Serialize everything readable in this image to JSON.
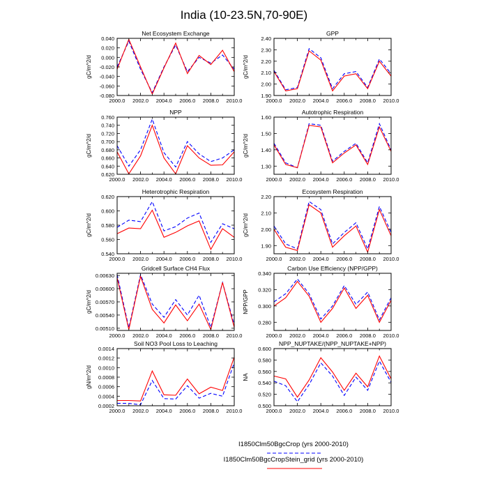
{
  "figure": {
    "title": "India (10-23.5N,70-90E)",
    "legend": [
      {
        "label": "I1850Clm50BgcCrop (yrs 2000-2010)",
        "color": "#0000ff",
        "dash": "dashed"
      },
      {
        "label": "I1850Clm50BgcCropStein_grid (yrs 2000-2010)",
        "color": "#ff0000",
        "dash": "solid"
      }
    ]
  },
  "chart_data": [
    {
      "type": "line",
      "title": "Net Ecosystem Exchange",
      "ylabel": "gC/m^2/d",
      "xlim": [
        2000,
        2010
      ],
      "ylim": [
        -0.08,
        0.04
      ],
      "xticks": [
        "2000.0",
        "2002.0",
        "2004.0",
        "2006.0",
        "2008.0",
        "2010.0"
      ],
      "yticks": [
        -0.08,
        -0.06,
        -0.04,
        -0.02,
        0.0,
        0.02,
        0.04
      ],
      "yticklabels": [
        "-0.080",
        "-0.060",
        "-0.040",
        "-0.020",
        "0.000",
        "0.020",
        "0.040"
      ],
      "x": [
        2000,
        2001,
        2002,
        2003,
        2004,
        2005,
        2006,
        2007,
        2008,
        2009,
        2010
      ],
      "series": [
        {
          "name": "I1850Clm50BgcCrop (yrs 2000-2010)",
          "color": "#0000ff",
          "dash": "dashed",
          "values": [
            -0.02,
            0.034,
            -0.025,
            -0.074,
            -0.02,
            0.026,
            -0.03,
            0.0,
            -0.012,
            0.005,
            -0.025
          ]
        },
        {
          "name": "I1850Clm50BgcCropStein_grid (yrs 2000-2010)",
          "color": "#ff0000",
          "dash": "solid",
          "values": [
            -0.025,
            0.038,
            -0.02,
            -0.077,
            -0.022,
            0.03,
            -0.034,
            0.004,
            -0.015,
            0.015,
            -0.03
          ]
        }
      ]
    },
    {
      "type": "line",
      "title": "GPP",
      "ylabel": "gC/m^2/d",
      "xlim": [
        2000,
        2010
      ],
      "ylim": [
        1.9,
        2.4
      ],
      "xticks": [
        "2000.0",
        "2002.0",
        "2004.0",
        "2006.0",
        "2008.0",
        "2010.0"
      ],
      "yticks": [
        1.9,
        2.0,
        2.1,
        2.2,
        2.3,
        2.4
      ],
      "yticklabels": [
        "1.90",
        "2.00",
        "2.10",
        "2.20",
        "2.30",
        "2.40"
      ],
      "x": [
        2000,
        2001,
        2002,
        2003,
        2004,
        2005,
        2006,
        2007,
        2008,
        2009,
        2010
      ],
      "series": [
        {
          "name": "I1850Clm50BgcCrop (yrs 2000-2010)",
          "color": "#0000ff",
          "dash": "dashed",
          "values": [
            2.12,
            1.95,
            1.97,
            2.31,
            2.23,
            1.96,
            2.09,
            2.11,
            1.97,
            2.22,
            2.09
          ]
        },
        {
          "name": "I1850Clm50BgcCropStein_grid (yrs 2000-2010)",
          "color": "#ff0000",
          "dash": "solid",
          "values": [
            2.11,
            1.94,
            1.96,
            2.29,
            2.21,
            1.94,
            2.07,
            2.09,
            1.96,
            2.2,
            2.07
          ]
        }
      ]
    },
    {
      "type": "line",
      "title": "NPP",
      "ylabel": "gC/m^2/d",
      "xlim": [
        2000,
        2010
      ],
      "ylim": [
        0.62,
        0.76
      ],
      "xticks": [
        "2000.0",
        "2002.0",
        "2004.0",
        "2006.0",
        "2008.0",
        "2010.0"
      ],
      "yticks": [
        0.62,
        0.64,
        0.66,
        0.68,
        0.7,
        0.72,
        0.74,
        0.76
      ],
      "yticklabels": [
        "0.620",
        "0.640",
        "0.660",
        "0.680",
        "0.700",
        "0.720",
        "0.740",
        "0.760"
      ],
      "x": [
        2000,
        2001,
        2002,
        2003,
        2004,
        2005,
        2006,
        2007,
        2008,
        2009,
        2010
      ],
      "series": [
        {
          "name": "I1850Clm50BgcCrop (yrs 2000-2010)",
          "color": "#0000ff",
          "dash": "dashed",
          "values": [
            0.69,
            0.64,
            0.68,
            0.755,
            0.673,
            0.638,
            0.7,
            0.67,
            0.651,
            0.66,
            0.68
          ]
        },
        {
          "name": "I1850Clm50BgcCropStein_grid (yrs 2000-2010)",
          "color": "#ff0000",
          "dash": "solid",
          "values": [
            0.675,
            0.621,
            0.665,
            0.74,
            0.66,
            0.621,
            0.69,
            0.66,
            0.642,
            0.643,
            0.675
          ]
        }
      ]
    },
    {
      "type": "line",
      "title": "Autotrophic Respiration",
      "ylabel": "gC/m^2/d",
      "xlim": [
        2000,
        2010
      ],
      "ylim": [
        1.25,
        1.6
      ],
      "xticks": [
        "2000.0",
        "2002.0",
        "2004.0",
        "2006.0",
        "2008.0",
        "2010.0"
      ],
      "yticks": [
        1.3,
        1.4,
        1.5,
        1.6
      ],
      "yticklabels": [
        "1.30",
        "1.40",
        "1.50",
        "1.60"
      ],
      "x": [
        2000,
        2001,
        2002,
        2003,
        2004,
        2005,
        2006,
        2007,
        2008,
        2009,
        2010
      ],
      "series": [
        {
          "name": "I1850Clm50BgcCrop (yrs 2000-2010)",
          "color": "#0000ff",
          "dash": "dashed",
          "values": [
            1.44,
            1.32,
            1.29,
            1.56,
            1.55,
            1.33,
            1.39,
            1.44,
            1.32,
            1.56,
            1.4
          ]
        },
        {
          "name": "I1850Clm50BgcCropStein_grid (yrs 2000-2010)",
          "color": "#ff0000",
          "dash": "solid",
          "values": [
            1.43,
            1.31,
            1.29,
            1.55,
            1.54,
            1.32,
            1.38,
            1.43,
            1.31,
            1.54,
            1.39
          ]
        }
      ]
    },
    {
      "type": "line",
      "title": "Heterotrophic Respiration",
      "ylabel": "gC/m^2/d",
      "xlim": [
        2000,
        2010
      ],
      "ylim": [
        0.54,
        0.62
      ],
      "xticks": [
        "2000.0",
        "2002.0",
        "2004.0",
        "2006.0",
        "2008.0",
        "2010.0"
      ],
      "yticks": [
        0.54,
        0.56,
        0.58,
        0.6,
        0.62
      ],
      "yticklabels": [
        "0.540",
        "0.560",
        "0.580",
        "0.600",
        "0.620"
      ],
      "x": [
        2000,
        2001,
        2002,
        2003,
        2004,
        2005,
        2006,
        2007,
        2008,
        2009,
        2010
      ],
      "series": [
        {
          "name": "I1850Clm50BgcCrop (yrs 2000-2010)",
          "color": "#0000ff",
          "dash": "dashed",
          "values": [
            0.577,
            0.587,
            0.585,
            0.613,
            0.572,
            0.578,
            0.59,
            0.597,
            0.556,
            0.582,
            0.575
          ]
        },
        {
          "name": "I1850Clm50BgcCropStein_grid (yrs 2000-2010)",
          "color": "#ff0000",
          "dash": "solid",
          "values": [
            0.568,
            0.576,
            0.575,
            0.601,
            0.563,
            0.57,
            0.579,
            0.586,
            0.546,
            0.575,
            0.563
          ]
        }
      ]
    },
    {
      "type": "line",
      "title": "Ecosystem Respiration",
      "ylabel": "gC/m^2/d",
      "xlim": [
        2000,
        2010
      ],
      "ylim": [
        1.85,
        2.2
      ],
      "xticks": [
        "2000.0",
        "2002.0",
        "2004.0",
        "2006.0",
        "2008.0",
        "2010.0"
      ],
      "yticks": [
        1.9,
        2.0,
        2.1,
        2.2
      ],
      "yticklabels": [
        "1.90",
        "2.00",
        "2.10",
        "2.20"
      ],
      "x": [
        2000,
        2001,
        2002,
        2003,
        2004,
        2005,
        2006,
        2007,
        2008,
        2009,
        2010
      ],
      "series": [
        {
          "name": "I1850Clm50BgcCrop (yrs 2000-2010)",
          "color": "#0000ff",
          "dash": "dashed",
          "values": [
            2.02,
            1.91,
            1.88,
            2.17,
            2.12,
            1.91,
            1.98,
            2.04,
            1.88,
            2.14,
            1.98
          ]
        },
        {
          "name": "I1850Clm50BgcCropStein_grid (yrs 2000-2010)",
          "color": "#ff0000",
          "dash": "solid",
          "values": [
            2.0,
            1.89,
            1.87,
            2.15,
            2.1,
            1.89,
            1.96,
            2.02,
            1.86,
            2.12,
            1.96
          ]
        }
      ]
    },
    {
      "type": "line",
      "title": "Gridcell Surface CH4 Flux",
      "ylabel": "gC/m^2/d",
      "xlim": [
        2000,
        2010
      ],
      "ylim": [
        0.00505,
        0.00635
      ],
      "xticks": [
        "2000.0",
        "2002.0",
        "2004.0",
        "2006.0",
        "2008.0",
        "2010.0"
      ],
      "yticks": [
        0.0051,
        0.0054,
        0.0057,
        0.006,
        0.0063
      ],
      "yticklabels": [
        "0.00510",
        "0.00540",
        "0.00570",
        "0.00600",
        "0.00630"
      ],
      "x": [
        2000,
        2001,
        2002,
        2003,
        2004,
        2005,
        2006,
        2007,
        2008,
        2009,
        2010
      ],
      "series": [
        {
          "name": "I1850Clm50BgcCrop (yrs 2000-2010)",
          "color": "#0000ff",
          "dash": "dashed",
          "values": [
            0.00632,
            0.00511,
            0.00632,
            0.00565,
            0.00535,
            0.00575,
            0.0054,
            0.00585,
            0.00512,
            0.00614,
            0.00518
          ]
        },
        {
          "name": "I1850Clm50BgcCropStein_grid (yrs 2000-2010)",
          "color": "#ff0000",
          "dash": "solid",
          "values": [
            0.00625,
            0.00507,
            0.00628,
            0.00553,
            0.00522,
            0.00563,
            0.00527,
            0.00565,
            0.00507,
            0.00614,
            0.00512
          ]
        }
      ]
    },
    {
      "type": "line",
      "title": "Carbon Use Efficiency (NPP/GPP)",
      "ylabel": "NPP/GPP",
      "xlim": [
        2000,
        2010
      ],
      "ylim": [
        0.27,
        0.34
      ],
      "xticks": [
        "2000.0",
        "2002.0",
        "2004.0",
        "2006.0",
        "2008.0",
        "2010.0"
      ],
      "yticks": [
        0.28,
        0.3,
        0.32,
        0.34
      ],
      "yticklabels": [
        "0.280",
        "0.300",
        "0.320",
        "0.340"
      ],
      "x": [
        2000,
        2001,
        2002,
        2003,
        2004,
        2005,
        2006,
        2007,
        2008,
        2009,
        2010
      ],
      "series": [
        {
          "name": "I1850Clm50BgcCrop (yrs 2000-2010)",
          "color": "#0000ff",
          "dash": "dashed",
          "values": [
            0.305,
            0.315,
            0.333,
            0.315,
            0.284,
            0.3,
            0.325,
            0.302,
            0.317,
            0.283,
            0.31
          ]
        },
        {
          "name": "I1850Clm50BgcCropStein_grid (yrs 2000-2010)",
          "color": "#ff0000",
          "dash": "solid",
          "values": [
            0.3,
            0.31,
            0.33,
            0.312,
            0.28,
            0.297,
            0.322,
            0.297,
            0.313,
            0.28,
            0.307
          ]
        }
      ]
    },
    {
      "type": "line",
      "title": "Soil NO3 Pool Loss to Leaching",
      "ylabel": "gN/m^2/d",
      "xlim": [
        2000,
        2010
      ],
      "ylim": [
        0.0002,
        0.0014
      ],
      "xticks": [
        "2000.0",
        "2002.0",
        "2004.0",
        "2006.0",
        "2008.0",
        "2010.0"
      ],
      "yticks": [
        0.0002,
        0.0004,
        0.0006,
        0.0008,
        0.001,
        0.0012,
        0.0014
      ],
      "yticklabels": [
        "0.0002",
        "0.0004",
        "0.0006",
        "0.0008",
        "0.0010",
        "0.0012",
        "0.0014"
      ],
      "x": [
        2000,
        2001,
        2002,
        2003,
        2004,
        2005,
        2006,
        2007,
        2008,
        2009,
        2010
      ],
      "series": [
        {
          "name": "I1850Clm50BgcCrop (yrs 2000-2010)",
          "color": "#0000ff",
          "dash": "dashed",
          "values": [
            0.00025,
            0.00025,
            0.00022,
            0.00073,
            0.00035,
            0.00034,
            0.00062,
            0.00036,
            0.00046,
            0.0004,
            0.0011
          ]
        },
        {
          "name": "I1850Clm50BgcCropStein_grid (yrs 2000-2010)",
          "color": "#ff0000",
          "dash": "solid",
          "values": [
            0.00031,
            0.00031,
            0.0003,
            0.00093,
            0.00043,
            0.00042,
            0.00076,
            0.00045,
            0.00059,
            0.00052,
            0.00122
          ]
        }
      ]
    },
    {
      "type": "line",
      "title": "NPP_NUPTAKE/(NPP_NUPTAKE+NPP)",
      "ylabel": "NA",
      "xlim": [
        2000,
        2010
      ],
      "ylim": [
        0.5,
        0.6
      ],
      "xticks": [
        "2000.0",
        "2002.0",
        "2004.0",
        "2006.0",
        "2008.0",
        "2010.0"
      ],
      "yticks": [
        0.5,
        0.52,
        0.54,
        0.56,
        0.58,
        0.6
      ],
      "yticklabels": [
        "0.500",
        "0.520",
        "0.540",
        "0.560",
        "0.580",
        "0.600"
      ],
      "x": [
        2000,
        2001,
        2002,
        2003,
        2004,
        2005,
        2006,
        2007,
        2008,
        2009,
        2010
      ],
      "series": [
        {
          "name": "I1850Clm50BgcCrop (yrs 2000-2010)",
          "color": "#0000ff",
          "dash": "dashed",
          "values": [
            0.543,
            0.535,
            0.507,
            0.537,
            0.575,
            0.552,
            0.518,
            0.55,
            0.527,
            0.578,
            0.541
          ]
        },
        {
          "name": "I1850Clm50BgcCropStein_grid (yrs 2000-2010)",
          "color": "#ff0000",
          "dash": "solid",
          "values": [
            0.552,
            0.547,
            0.515,
            0.545,
            0.584,
            0.559,
            0.527,
            0.557,
            0.533,
            0.587,
            0.547
          ]
        }
      ]
    }
  ]
}
